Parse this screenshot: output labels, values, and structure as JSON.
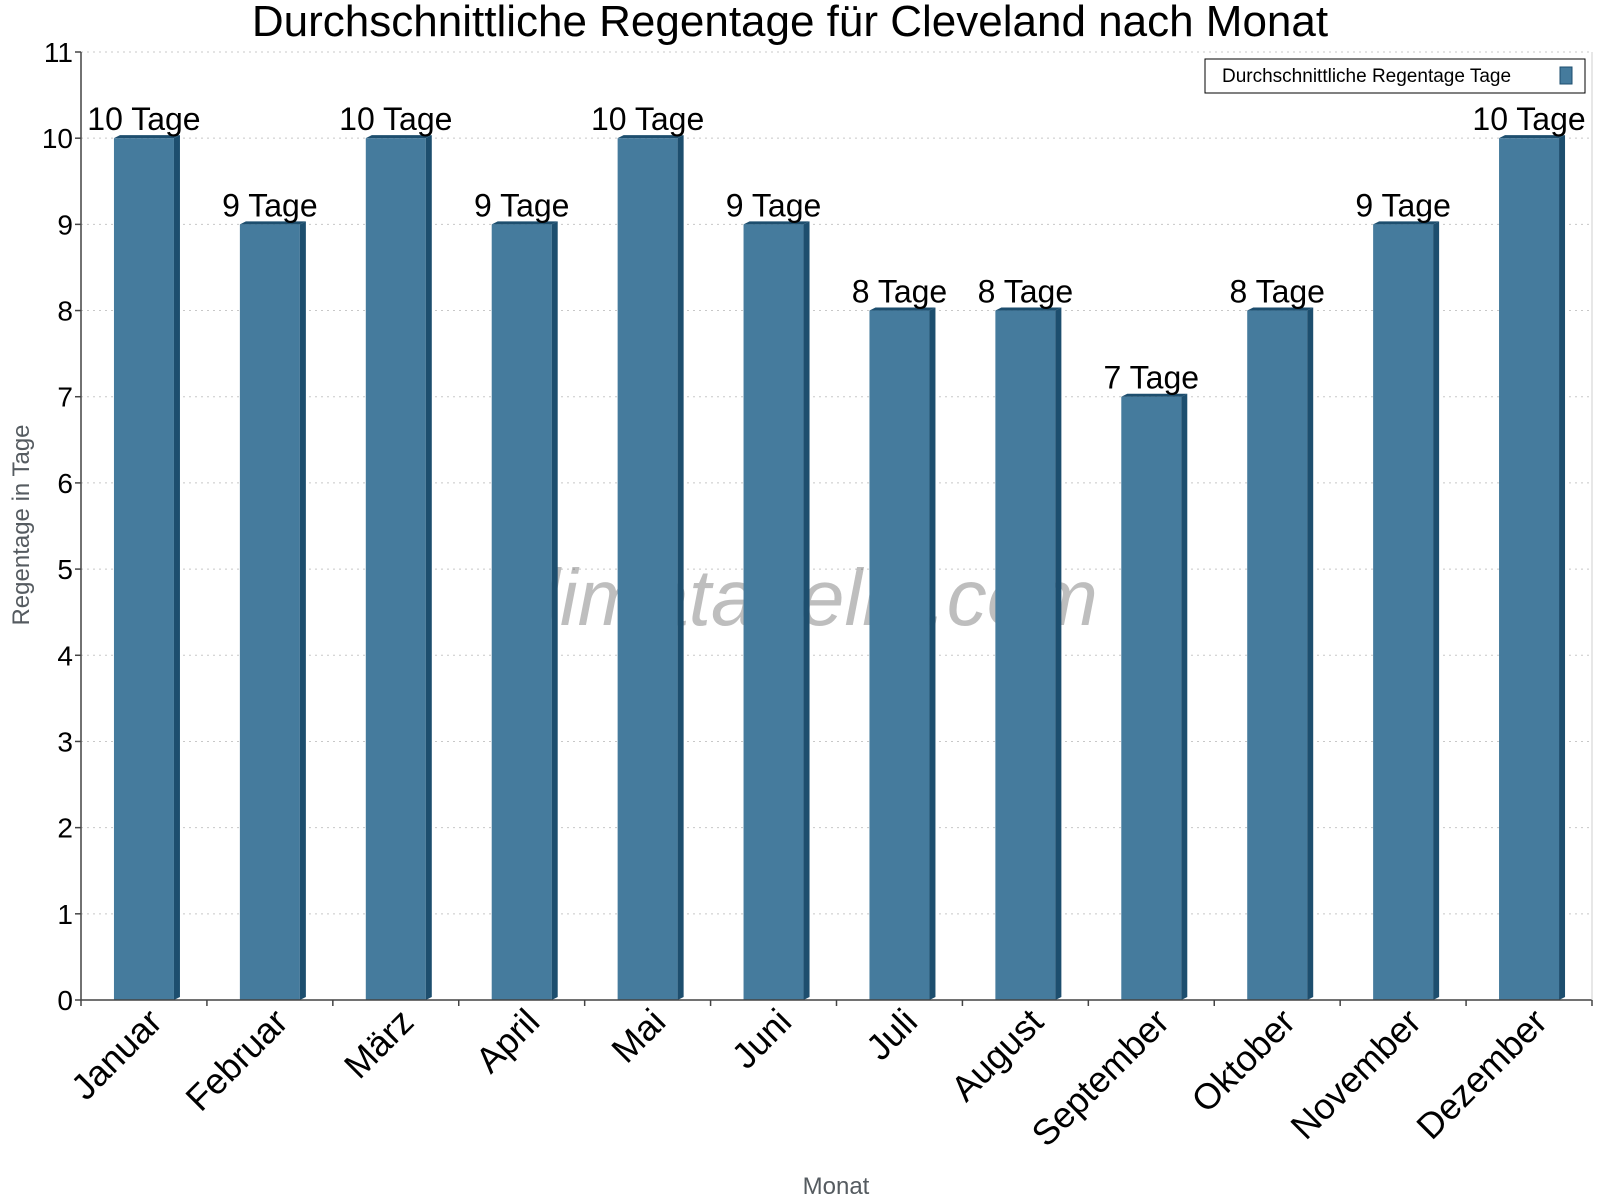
{
  "chart_data": {
    "type": "bar",
    "title": "Durchschnittliche Regentage für Cleveland nach Monat",
    "xlabel": "Monat",
    "ylabel": "Regentage in Tage",
    "ylim": [
      0,
      11
    ],
    "yticks": [
      0,
      1,
      2,
      3,
      4,
      5,
      6,
      7,
      8,
      9,
      10,
      11
    ],
    "grid": true,
    "legend_position": "top-right",
    "categories": [
      "Januar",
      "Februar",
      "März",
      "April",
      "Mai",
      "Juni",
      "Juli",
      "August",
      "September",
      "Oktober",
      "November",
      "Dezember"
    ],
    "series": [
      {
        "name": "Durchschnittliche Regentage Tage",
        "values": [
          10,
          9,
          10,
          9,
          10,
          9,
          8,
          8,
          7,
          8,
          9,
          10
        ],
        "labels": [
          "10 Tage",
          "9 Tage",
          "10 Tage",
          "9 Tage",
          "10 Tage",
          "9 Tage",
          "8 Tage",
          "8 Tage",
          "7 Tage",
          "8 Tage",
          "9 Tage",
          "10 Tage"
        ],
        "color": "#457b9d",
        "side_color": "#1d4e6e"
      }
    ]
  },
  "watermark": "klimatabelle.com"
}
